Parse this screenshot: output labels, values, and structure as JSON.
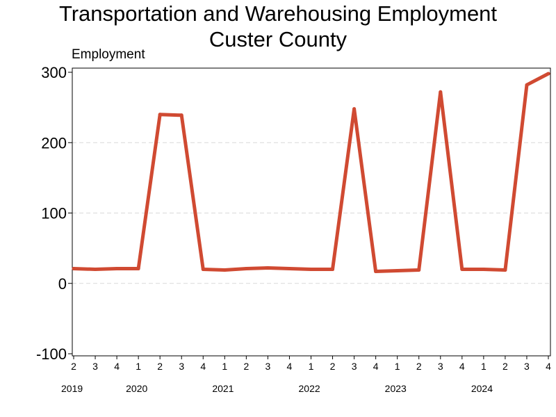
{
  "chart_data": {
    "type": "line",
    "title": "Transportation and Warehousing Employment",
    "subtitle": "Custer County",
    "ylabel": "Employment",
    "xlabel": "",
    "ylim": [
      -100,
      300
    ],
    "yticks": [
      -100,
      0,
      100,
      200,
      300
    ],
    "grid": "horizontal dashed",
    "line_color": "#d04a32",
    "x": [
      "2019 Q2",
      "2019 Q3",
      "2019 Q4",
      "2020 Q1",
      "2020 Q2",
      "2020 Q3",
      "2020 Q4",
      "2021 Q1",
      "2021 Q2",
      "2021 Q3",
      "2021 Q4",
      "2022 Q1",
      "2022 Q2",
      "2022 Q3",
      "2022 Q4",
      "2023 Q1",
      "2023 Q2",
      "2023 Q3",
      "2023 Q4",
      "2024 Q1",
      "2024 Q2",
      "2024 Q3",
      "2024 Q4"
    ],
    "quarter_labels": [
      "2",
      "3",
      "4",
      "1",
      "2",
      "3",
      "4",
      "1",
      "2",
      "3",
      "4",
      "1",
      "2",
      "3",
      "4",
      "1",
      "2",
      "3",
      "4",
      "1",
      "2",
      "3",
      "4"
    ],
    "year_labels": [
      {
        "label": "2019",
        "start_index": 0
      },
      {
        "label": "2020",
        "start_index": 3
      },
      {
        "label": "2021",
        "start_index": 7
      },
      {
        "label": "2022",
        "start_index": 11
      },
      {
        "label": "2023",
        "start_index": 15
      },
      {
        "label": "2024",
        "start_index": 19
      }
    ],
    "series": [
      {
        "values": [
          21,
          20,
          21,
          21,
          240,
          239,
          20,
          19,
          21,
          22,
          21,
          20,
          20,
          248,
          17,
          18,
          19,
          272,
          20,
          20,
          19,
          282,
          298
        ]
      }
    ]
  }
}
